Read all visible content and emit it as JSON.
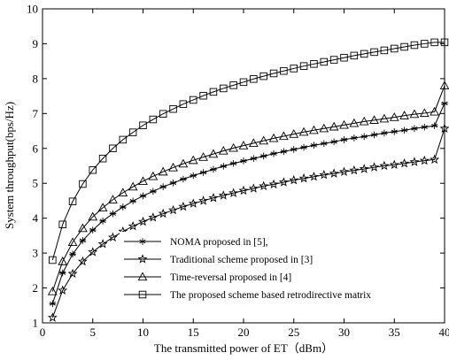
{
  "chart_data": {
    "type": "line",
    "title": "",
    "xlabel": "The transmitted power of ET（dBm）",
    "ylabel": "System throughput(bps/Hz)",
    "xlim": [
      0,
      40
    ],
    "ylim": [
      1,
      10
    ],
    "xticks": [
      "0",
      "5",
      "10",
      "15",
      "20",
      "25",
      "30",
      "35",
      "40"
    ],
    "yticks": [
      "1",
      "2",
      "3",
      "4",
      "5",
      "6",
      "7",
      "8",
      "9",
      "10"
    ],
    "grid": false,
    "legend_position": "bottom-right",
    "x": [
      1,
      2,
      3,
      4,
      5,
      6,
      7,
      8,
      9,
      10,
      11,
      12,
      13,
      14,
      15,
      16,
      17,
      18,
      19,
      20,
      21,
      22,
      23,
      24,
      25,
      26,
      27,
      28,
      29,
      30,
      31,
      32,
      33,
      34,
      35,
      36,
      37,
      38,
      39,
      40
    ],
    "series": [
      {
        "name": "NOMA proposed in [5],",
        "marker": "asterisk",
        "values": [
          1.55,
          2.43,
          2.97,
          3.36,
          3.66,
          3.92,
          4.13,
          4.32,
          4.49,
          4.64,
          4.77,
          4.9,
          5.01,
          5.12,
          5.22,
          5.31,
          5.4,
          5.49,
          5.57,
          5.64,
          5.71,
          5.78,
          5.85,
          5.91,
          5.97,
          6.03,
          6.09,
          6.14,
          6.19,
          6.25,
          6.3,
          6.34,
          6.39,
          6.44,
          6.48,
          6.52,
          6.57,
          6.61,
          6.65,
          7.29
        ]
      },
      {
        "name": "Traditional scheme proposed in [3]",
        "marker": "star",
        "values": [
          1.15,
          1.93,
          2.41,
          2.76,
          3.03,
          3.26,
          3.45,
          3.62,
          3.77,
          3.9,
          4.02,
          4.13,
          4.23,
          4.33,
          4.42,
          4.5,
          4.58,
          4.65,
          4.72,
          4.79,
          4.85,
          4.92,
          4.97,
          5.03,
          5.09,
          5.14,
          5.19,
          5.24,
          5.28,
          5.33,
          5.37,
          5.41,
          5.46,
          5.5,
          5.53,
          5.57,
          5.61,
          5.65,
          5.68,
          6.57
        ]
      },
      {
        "name": "Time-reversal proposed in [4]",
        "marker": "triangle",
        "values": [
          1.9,
          2.76,
          3.31,
          3.71,
          4.04,
          4.3,
          4.53,
          4.73,
          4.9,
          5.06,
          5.2,
          5.33,
          5.45,
          5.56,
          5.66,
          5.75,
          5.84,
          5.93,
          6.01,
          6.08,
          6.15,
          6.22,
          6.29,
          6.35,
          6.41,
          6.47,
          6.52,
          6.57,
          6.62,
          6.67,
          6.72,
          6.77,
          6.81,
          6.85,
          6.89,
          6.94,
          6.98,
          7.01,
          7.05,
          7.8
        ]
      },
      {
        "name": "The proposed scheme based retrodirective matrix",
        "marker": "square",
        "values": [
          2.8,
          3.82,
          4.48,
          4.98,
          5.38,
          5.71,
          6.0,
          6.25,
          6.46,
          6.66,
          6.83,
          6.99,
          7.13,
          7.27,
          7.39,
          7.51,
          7.62,
          7.72,
          7.81,
          7.9,
          7.99,
          8.07,
          8.15,
          8.22,
          8.29,
          8.36,
          8.42,
          8.48,
          8.54,
          8.6,
          8.66,
          8.71,
          8.76,
          8.81,
          8.86,
          8.91,
          8.96,
          9.0,
          9.04,
          9.04
        ]
      }
    ]
  }
}
